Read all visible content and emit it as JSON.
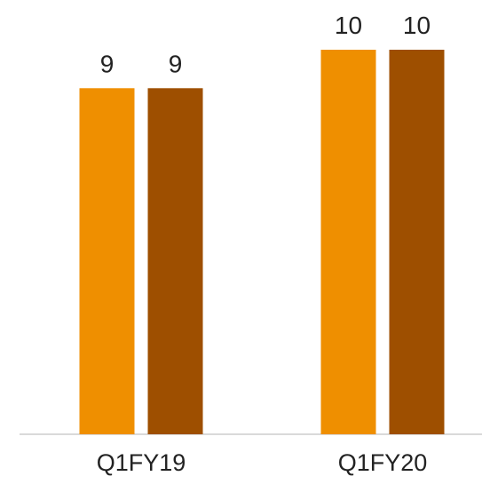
{
  "chart_data": {
    "type": "bar",
    "categories": [
      "Q1FY19",
      "Q1FY20"
    ],
    "series": [
      {
        "values": [
          9,
          10
        ],
        "color": "#ef8f00"
      },
      {
        "values": [
          9,
          10
        ],
        "color": "#9e4f00"
      }
    ],
    "title": "",
    "xlabel": "",
    "ylabel": "",
    "ylim": [
      0,
      10.5
    ],
    "grid": false,
    "legend": "none",
    "data_labels": true,
    "axis_color": "#d9d9d9",
    "text_color": "#222222"
  }
}
